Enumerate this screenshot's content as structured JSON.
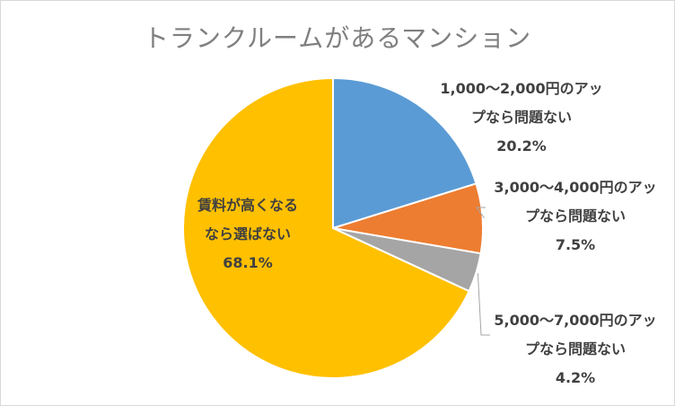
{
  "chart_data": {
    "type": "pie",
    "title": "トランクルームがあるマンション",
    "slices": [
      {
        "name": "1,000〜2,000円のアップなら問題ない",
        "label_lines": [
          "1,000〜2,000円のアッ",
          "プなら問題ない"
        ],
        "value": 20.2,
        "value_label": "20.2%",
        "color": "#5b9bd5"
      },
      {
        "name": "3,000〜4,000円のアップなら問題ない",
        "label_lines": [
          "3,000〜4,000円のアッ",
          "プなら問題ない"
        ],
        "value": 7.5,
        "value_label": "7.5%",
        "color": "#ed7d31"
      },
      {
        "name": "5,000〜7,000円のアップなら問題ない",
        "label_lines": [
          "5,000〜7,000円のアッ",
          "プなら問題ない"
        ],
        "value": 4.2,
        "value_label": "4.2%",
        "color": "#a5a5a5"
      },
      {
        "name": "賃料が高くなるなら選ばない",
        "label_lines": [
          "賃料が高くなる",
          "なら選ばない"
        ],
        "value": 68.1,
        "value_label": "68.1%",
        "color": "#ffc000"
      }
    ],
    "start_angle": "12 o'clock",
    "direction": "clockwise",
    "legend": "none",
    "data_labels": "category name and percentage",
    "leader_lines": true
  }
}
